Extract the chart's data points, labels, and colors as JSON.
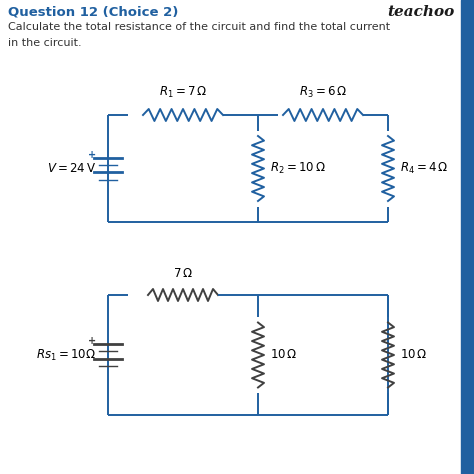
{
  "title": "Question 12 (Choice 2)",
  "brand": "teachoo",
  "question_line1": "Calculate the total resistance of the circuit and find the total current",
  "question_line2": "in the circuit.",
  "bg_color": "#ffffff",
  "text_color": "#000000",
  "title_color": "#2060a0",
  "circuit_color": "#2060a0",
  "circuit2_color": "#404040",
  "blue_bar_color": "#2060a0",
  "r1_label": "$R_1 = 7\\,\\Omega$",
  "r2_label": "$R_2 = 10\\,\\Omega$",
  "r3_label": "$R_3 = 6\\,\\Omega$",
  "r4_label": "$R_4 = 4\\,\\Omega$",
  "v_label": "$V = 24\\,\\mathrm{V}$",
  "r_bot1_label": "$7\\,\\Omega$",
  "r_bot2_label": "$10\\,\\Omega$",
  "r_bot3_label": "$10\\,\\Omega$",
  "rs_label": "$Rs_1 = 10\\Omega$"
}
